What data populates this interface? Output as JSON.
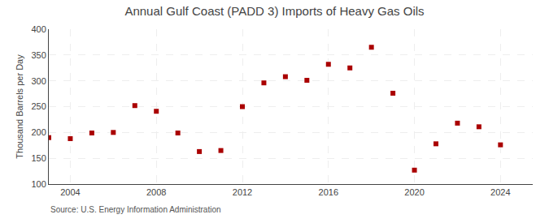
{
  "chart_data": {
    "type": "scatter",
    "title": "Annual Gulf Coast (PADD 3) Imports of Heavy Gas Oils",
    "ylabel": "Thousand Barrels per Day",
    "annotations": [
      "Source: U.S. Energy Information Administration"
    ],
    "x": [
      2003,
      2004,
      2005,
      2006,
      2007,
      2008,
      2009,
      2010,
      2011,
      2012,
      2013,
      2014,
      2015,
      2016,
      2017,
      2018,
      2019,
      2020,
      2021,
      2022,
      2023,
      2024
    ],
    "values": [
      190,
      188,
      199,
      200,
      252,
      241,
      199,
      163,
      165,
      250,
      296,
      308,
      301,
      332,
      325,
      365,
      276,
      127,
      178,
      218,
      211,
      176
    ],
    "color": "#aa0000",
    "marker": "square",
    "xlim": [
      2003.0,
      2025.5
    ],
    "xticks": [
      2004,
      2008,
      2012,
      2016,
      2020,
      2024
    ],
    "ylim": [
      100,
      400
    ],
    "yticks": [
      100,
      150,
      200,
      250,
      300,
      350,
      400
    ],
    "grid": true
  }
}
